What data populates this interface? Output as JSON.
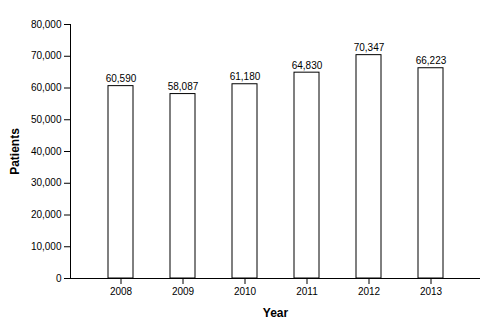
{
  "chart_data": {
    "type": "bar",
    "categories": [
      "2008",
      "2009",
      "2010",
      "2011",
      "2012",
      "2013"
    ],
    "values": [
      60590,
      58087,
      61180,
      64830,
      70347,
      66223
    ],
    "value_labels": [
      "60,590",
      "58,087",
      "61,180",
      "64,830",
      "70,347",
      "66,223"
    ],
    "data_labels": true,
    "color": "#ffffff",
    "xlabel": "Year",
    "ylabel": "Patients",
    "ylim": [
      0,
      80000
    ],
    "yticks": [
      0,
      {
        "value": 10000,
        "label": "10,000"
      },
      {
        "value": 20000,
        "label": "20,000"
      },
      {
        "value": 30000,
        "label": "30,000"
      },
      {
        "value": 40000,
        "label": "40,000"
      },
      {
        "value": 50000,
        "label": "50,000"
      },
      {
        "value": 60000,
        "label": "60,000"
      },
      {
        "value": 70000,
        "label": "70,000"
      },
      {
        "value": 80000,
        "label": "80,000"
      }
    ],
    "grid": false
  }
}
